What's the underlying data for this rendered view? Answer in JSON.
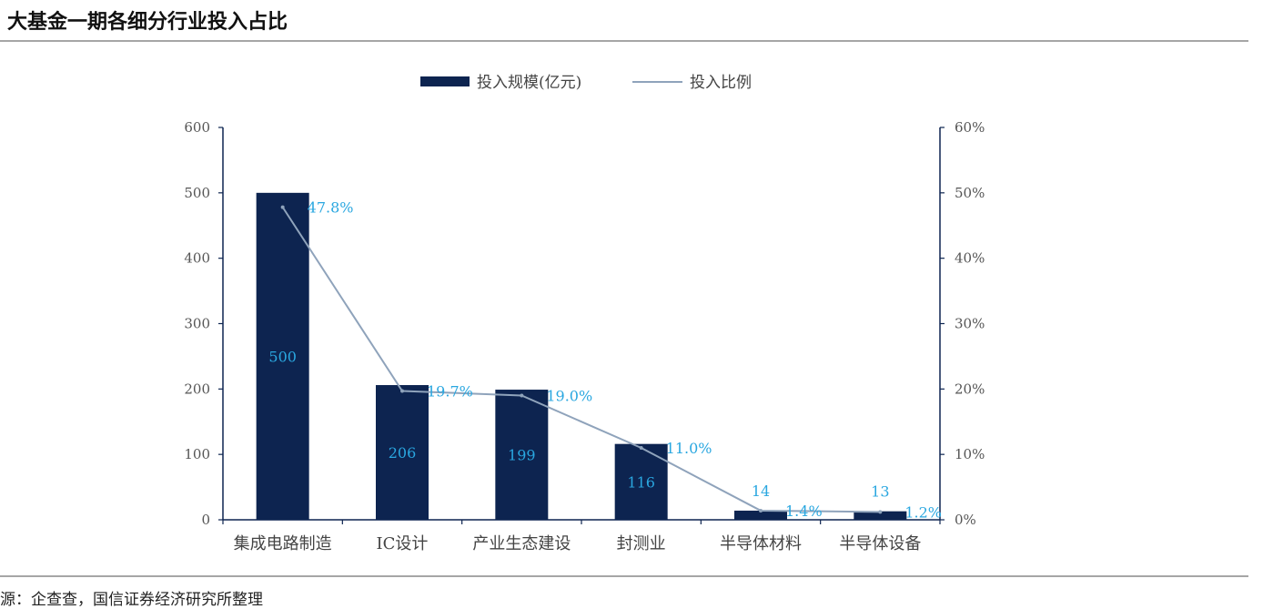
{
  "title": "大基金一期各细分行业投入占比",
  "source": "源：企查查，国信证券经济研究所整理",
  "colors": {
    "bar": "#0d2450",
    "line": "#8fa3bb",
    "label": "#2aa7e0",
    "axis": "#0d2450"
  },
  "chart_data": {
    "type": "bar",
    "categories": [
      "集成电路制造",
      "IC设计",
      "产业生态建设",
      "封测业",
      "半导体材料",
      "半导体设备"
    ],
    "series": [
      {
        "name": "投入规模(亿元)",
        "type": "bar",
        "axis": "left",
        "values": [
          500,
          206,
          199,
          116,
          14,
          13
        ],
        "labels": [
          "500",
          "206",
          "199",
          "116",
          "14",
          "13"
        ]
      },
      {
        "name": "投入比例",
        "type": "line",
        "axis": "right",
        "values": [
          47.8,
          19.7,
          19.0,
          11.0,
          1.4,
          1.2
        ],
        "labels": [
          "47.8%",
          "19.7%",
          "19.0%",
          "11.0%",
          "1.4%",
          "1.2%"
        ]
      }
    ],
    "left_axis": {
      "ylim": [
        0,
        600
      ],
      "ticks": [
        "0",
        "100",
        "200",
        "300",
        "400",
        "500",
        "600"
      ]
    },
    "right_axis": {
      "ylim": [
        0,
        60
      ],
      "ticks": [
        "0%",
        "10%",
        "20%",
        "30%",
        "40%",
        "50%",
        "60%"
      ]
    },
    "legend_position": "top-center",
    "grid": false
  }
}
